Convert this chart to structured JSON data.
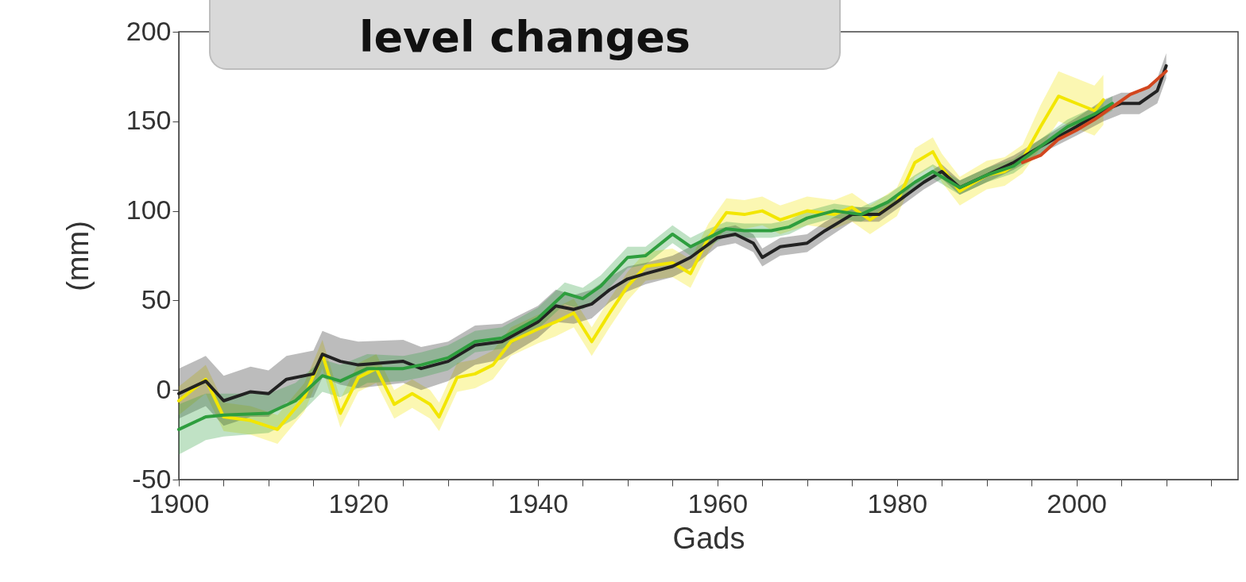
{
  "chart_data": {
    "type": "line",
    "title": "level changes",
    "xlabel": "Gads",
    "ylabel": "(mm)",
    "xlim": [
      1900,
      2018
    ],
    "ylim": [
      -50,
      200
    ],
    "xticks": [
      1900,
      {
        "value": 1905,
        "label": null
      },
      {
        "value": 1910,
        "label": null
      },
      {
        "value": 1915,
        "label": null
      },
      1920,
      {
        "value": 1925,
        "label": null
      },
      {
        "value": 1930,
        "label": null
      },
      {
        "value": 1935,
        "label": null
      },
      1940,
      {
        "value": 1945,
        "label": null
      },
      {
        "value": 1950,
        "label": null
      },
      {
        "value": 1955,
        "label": null
      },
      1960,
      {
        "value": 1965,
        "label": null
      },
      {
        "value": 1970,
        "label": null
      },
      {
        "value": 1975,
        "label": null
      },
      1980,
      {
        "value": 1985,
        "label": null
      },
      {
        "value": 1990,
        "label": null
      },
      {
        "value": 1995,
        "label": null
      },
      2000,
      {
        "value": 2005,
        "label": null
      },
      {
        "value": 2010,
        "label": null
      },
      {
        "value": 2015,
        "label": null
      }
    ],
    "yticks": [
      -50,
      0,
      50,
      100,
      150,
      200
    ],
    "grid": false,
    "marker": "none",
    "line_style": "solid",
    "series": [
      {
        "color": "#f2e600",
        "x": [
          1900,
          1903,
          1905,
          1908,
          1911,
          1914,
          1916,
          1918,
          1920,
          1922,
          1924,
          1926,
          1928,
          1929,
          1931,
          1933,
          1935,
          1937,
          1940,
          1942,
          1944,
          1946,
          1948,
          1950,
          1952,
          1955,
          1957,
          1959,
          1961,
          1963,
          1965,
          1967,
          1970,
          1973,
          1975,
          1977,
          1980,
          1982,
          1984,
          1985,
          1987,
          1990,
          1992,
          1994,
          1996,
          1998,
          2000,
          2002,
          2003
        ],
        "values": [
          -6,
          6,
          -15,
          -17,
          -22,
          -4,
          20,
          -13,
          7,
          12,
          -8,
          -2,
          -8,
          -15,
          7,
          9,
          14,
          27,
          34,
          38,
          43,
          27,
          43,
          58,
          69,
          71,
          65,
          85,
          99,
          98,
          100,
          95,
          100,
          98,
          102,
          95,
          105,
          127,
          133,
          124,
          111,
          120,
          122,
          129,
          147,
          164,
          160,
          156,
          162
        ],
        "lower": [
          -14,
          -2,
          -23,
          -25,
          -30,
          -12,
          12,
          -21,
          -1,
          4,
          -16,
          -10,
          -16,
          -23,
          -1,
          1,
          6,
          19,
          26,
          30,
          35,
          19,
          35,
          50,
          61,
          63,
          57,
          77,
          91,
          90,
          92,
          87,
          92,
          90,
          94,
          87,
          97,
          119,
          125,
          116,
          103,
          112,
          114,
          121,
          135,
          150,
          146,
          142,
          148
        ],
        "upper": [
          2,
          14,
          -7,
          -9,
          -14,
          4,
          28,
          -5,
          15,
          20,
          0,
          6,
          0,
          -7,
          15,
          17,
          22,
          35,
          42,
          46,
          51,
          35,
          51,
          66,
          77,
          79,
          73,
          93,
          107,
          106,
          108,
          103,
          108,
          106,
          110,
          103,
          113,
          135,
          141,
          132,
          119,
          128,
          130,
          137,
          159,
          178,
          174,
          170,
          176
        ]
      },
      {
        "color": "#222222",
        "x": [
          1900,
          1903,
          1905,
          1908,
          1910,
          1912,
          1915,
          1916,
          1918,
          1920,
          1925,
          1927,
          1930,
          1933,
          1936,
          1940,
          1942,
          1944,
          1946,
          1948,
          1950,
          1952,
          1955,
          1957,
          1960,
          1962,
          1964,
          1965,
          1967,
          1970,
          1972,
          1975,
          1978,
          1980,
          1983,
          1985,
          1987,
          1990,
          1993,
          1996,
          2000,
          2003,
          2005,
          2007,
          2009,
          2010
        ],
        "values": [
          -2,
          5,
          -6,
          -1,
          -2,
          6,
          9,
          20,
          16,
          14,
          16,
          12,
          16,
          25,
          27,
          38,
          47,
          45,
          48,
          56,
          62,
          65,
          69,
          74,
          85,
          87,
          82,
          74,
          80,
          82,
          89,
          98,
          98,
          105,
          116,
          122,
          113,
          120,
          127,
          136,
          147,
          156,
          160,
          160,
          167,
          181
        ],
        "lower": [
          -16,
          -9,
          -20,
          -15,
          -15,
          -7,
          -4,
          7,
          3,
          1,
          4,
          0,
          5,
          14,
          17,
          29,
          38,
          37,
          40,
          49,
          55,
          59,
          63,
          68,
          80,
          82,
          77,
          69,
          75,
          77,
          84,
          94,
          94,
          101,
          112,
          118,
          109,
          116,
          123,
          132,
          142,
          150,
          154,
          154,
          160,
          174
        ],
        "upper": [
          12,
          19,
          8,
          13,
          11,
          19,
          22,
          33,
          29,
          27,
          28,
          24,
          27,
          36,
          37,
          47,
          56,
          53,
          56,
          63,
          69,
          71,
          75,
          80,
          90,
          92,
          87,
          79,
          85,
          87,
          94,
          102,
          102,
          109,
          120,
          126,
          117,
          124,
          131,
          140,
          152,
          162,
          166,
          166,
          174,
          188
        ]
      },
      {
        "color": "#2e9e3e",
        "x": [
          1900,
          1903,
          1905,
          1910,
          1913,
          1916,
          1918,
          1921,
          1925,
          1927,
          1930,
          1933,
          1936,
          1940,
          1943,
          1945,
          1947,
          1950,
          1952,
          1955,
          1957,
          1959,
          1961,
          1963,
          1966,
          1968,
          1970,
          1973,
          1976,
          1979,
          1982,
          1984,
          1987,
          1990,
          1993,
          1996,
          1999,
          2002,
          2004
        ],
        "values": [
          -22,
          -15,
          -14,
          -13,
          -6,
          8,
          5,
          12,
          12,
          14,
          18,
          27,
          29,
          40,
          54,
          51,
          58,
          74,
          75,
          87,
          80,
          85,
          90,
          89,
          89,
          91,
          96,
          100,
          98,
          105,
          116,
          122,
          113,
          120,
          125,
          136,
          147,
          154,
          160
        ],
        "lower": [
          -36,
          -28,
          -26,
          -24,
          -16,
          -1,
          -4,
          4,
          5,
          7,
          11,
          21,
          23,
          34,
          48,
          45,
          52,
          68,
          70,
          82,
          75,
          80,
          86,
          85,
          85,
          87,
          92,
          96,
          94,
          101,
          112,
          118,
          109,
          116,
          121,
          132,
          143,
          150,
          156
        ],
        "upper": [
          -8,
          -2,
          -2,
          -2,
          4,
          17,
          14,
          20,
          19,
          21,
          25,
          33,
          35,
          46,
          60,
          57,
          64,
          80,
          80,
          92,
          85,
          90,
          94,
          93,
          93,
          95,
          100,
          104,
          102,
          109,
          120,
          126,
          117,
          124,
          129,
          140,
          151,
          158,
          164
        ]
      },
      {
        "color": "#d2461e",
        "x": [
          1994,
          1996,
          1998,
          2000,
          2002,
          2004,
          2006,
          2008,
          2010
        ],
        "values": [
          127,
          131,
          140,
          145,
          151,
          158,
          165,
          169,
          178
        ]
      }
    ]
  }
}
